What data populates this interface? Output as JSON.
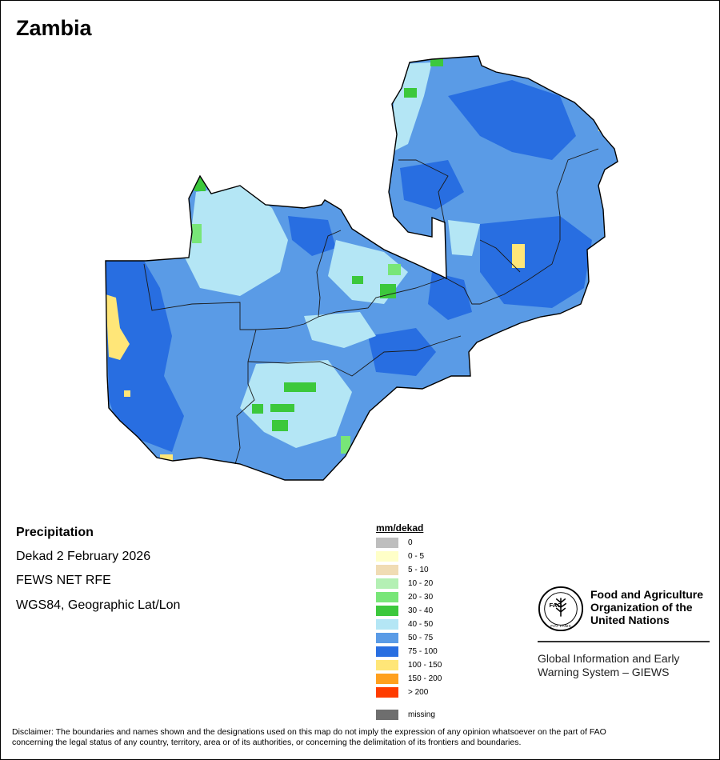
{
  "title": "Zambia",
  "info": {
    "variable": "Precipitation",
    "period": "Dekad 2 February 2026",
    "source": "FEWS NET RFE",
    "projection": "WGS84, Geographic Lat/Lon"
  },
  "legend": {
    "title": "mm/dekad",
    "items": [
      {
        "label": "0",
        "color": "#bebebe"
      },
      {
        "label": "0 - 5",
        "color": "#ffffc8"
      },
      {
        "label": "5 - 10",
        "color": "#f0dcb4"
      },
      {
        "label": "10 - 20",
        "color": "#b4f0b4"
      },
      {
        "label": "20 - 30",
        "color": "#78e678"
      },
      {
        "label": "30 - 40",
        "color": "#3cc83c"
      },
      {
        "label": "40 - 50",
        "color": "#b4e6f5"
      },
      {
        "label": "50 - 75",
        "color": "#5a9be6"
      },
      {
        "label": "75 - 100",
        "color": "#286ee1"
      },
      {
        "label": "100 - 150",
        "color": "#ffe678"
      },
      {
        "label": "150 - 200",
        "color": "#ffa01e"
      },
      {
        "label": "> 200",
        "color": "#ff3c00"
      },
      {
        "label": "missing",
        "color": "#6e6e6e"
      }
    ]
  },
  "org": {
    "logo_text": "FAO",
    "logo_motto": "FIAT PANIS",
    "name_line1": "Food and Agriculture",
    "name_line2": "Organization of the",
    "name_line3": "United Nations",
    "system_line1": "Global Information and Early",
    "system_line2": "Warning System – GIEWS"
  },
  "disclaimer_line1": "Disclaimer: The boundaries and names shown and the designations used on this map do not imply the expression of any opinion whatsoever on the part of FAO",
  "disclaimer_line2": "concerning the legal status of any country, territory, area or of its authorities, or concerning the delimitation of its frontiers and boundaries."
}
